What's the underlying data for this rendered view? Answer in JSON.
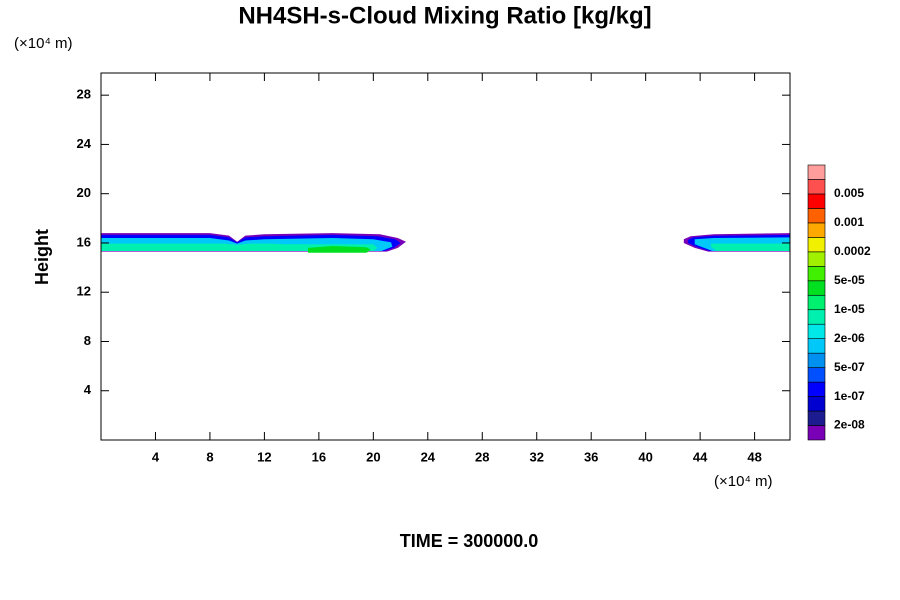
{
  "chart_data": {
    "type": "contour",
    "title": "NH4SH-s-Cloud Mixing Ratio [kg/kg]",
    "y_unit": "(×10⁴ m)",
    "x_unit": "(×10⁴ m)",
    "ylabel": "Height",
    "footer": "TIME = 300000.0",
    "xlim": [
      0,
      50.6
    ],
    "ylim": [
      0,
      29.8
    ],
    "xticks": [
      4,
      8,
      12,
      16,
      20,
      24,
      28,
      32,
      36,
      40,
      44,
      48
    ],
    "yticks": [
      4,
      8,
      12,
      16,
      20,
      24,
      28
    ],
    "colorbar": {
      "colors": [
        "#7a00b8",
        "#1c1c90",
        "#0000d0",
        "#0000ff",
        "#0050ff",
        "#0090f0",
        "#00c8f8",
        "#00e8e8",
        "#00f0b0",
        "#00f070",
        "#00e020",
        "#40f000",
        "#a0f000",
        "#f0f000",
        "#ffa800",
        "#ff6000",
        "#ff0000",
        "#ff5050",
        "#ff9c9c"
      ],
      "ticks": [
        {
          "value": 2e-08,
          "label": "2e-08"
        },
        {
          "value": 1e-07,
          "label": "1e-07"
        },
        {
          "value": 5e-07,
          "label": "5e-07"
        },
        {
          "value": 2e-06,
          "label": "2e-06"
        },
        {
          "value": 1e-05,
          "label": "1e-05"
        },
        {
          "value": 5e-05,
          "label": "5e-05"
        },
        0.0002,
        0.001,
        0.005
      ]
    },
    "regions": [
      {
        "level": 0,
        "x": [
          0,
          8,
          9.4,
          10,
          10.6,
          12,
          17,
          20.5,
          21.8,
          22.4,
          21.8,
          21,
          0
        ],
        "y": [
          16.8,
          16.8,
          16.6,
          16.1,
          16.6,
          16.7,
          16.8,
          16.7,
          16.4,
          16.1,
          15.6,
          15.3,
          15.3
        ]
      },
      {
        "level": 3,
        "x": [
          0,
          8,
          9.4,
          10,
          10.6,
          12,
          17,
          20.3,
          21.6,
          22,
          21.5,
          20.8,
          0
        ],
        "y": [
          16.65,
          16.65,
          16.45,
          16.05,
          16.45,
          16.55,
          16.65,
          16.55,
          16.3,
          16.0,
          15.6,
          15.35,
          15.35
        ]
      },
      {
        "level": 6,
        "x": [
          0,
          8,
          9.4,
          10,
          10.6,
          12,
          17,
          20,
          21.3,
          21.4,
          20.6,
          0
        ],
        "y": [
          16.4,
          16.4,
          16.2,
          15.95,
          16.2,
          16.3,
          16.4,
          16.3,
          16.05,
          15.7,
          15.35,
          15.35
        ]
      },
      {
        "level": 8,
        "x": [
          0,
          9,
          10,
          11,
          12.5,
          13.5,
          20,
          20.3,
          20,
          0
        ],
        "y": [
          15.95,
          15.95,
          15.85,
          15.95,
          15.95,
          15.9,
          15.9,
          15.6,
          15.35,
          15.35
        ]
      },
      {
        "level": 10,
        "x": [
          15.2,
          17,
          19.5,
          19.8,
          19.5,
          15.2
        ],
        "y": [
          15.6,
          15.75,
          15.65,
          15.45,
          15.2,
          15.2
        ]
      },
      {
        "level": 0,
        "x": [
          42.8,
          43.3,
          45,
          50.6,
          50.6,
          44.6,
          43.6,
          42.8
        ],
        "y": [
          16.3,
          16.55,
          16.7,
          16.8,
          15.3,
          15.3,
          15.6,
          16.0
        ]
      },
      {
        "level": 3,
        "x": [
          43.1,
          43.5,
          45,
          50.6,
          50.6,
          44.7,
          43.8,
          43.1
        ],
        "y": [
          16.25,
          16.45,
          16.58,
          16.65,
          15.35,
          15.35,
          15.65,
          16.0
        ]
      },
      {
        "level": 6,
        "x": [
          43.6,
          45,
          50.6,
          50.6,
          44.9,
          43.6
        ],
        "y": [
          16.3,
          16.4,
          16.45,
          15.35,
          15.35,
          15.9
        ]
      },
      {
        "level": 8,
        "x": [
          44.8,
          50.6,
          50.6,
          45.2,
          44.8
        ],
        "y": [
          15.95,
          15.95,
          15.35,
          15.35,
          15.7
        ]
      }
    ]
  }
}
